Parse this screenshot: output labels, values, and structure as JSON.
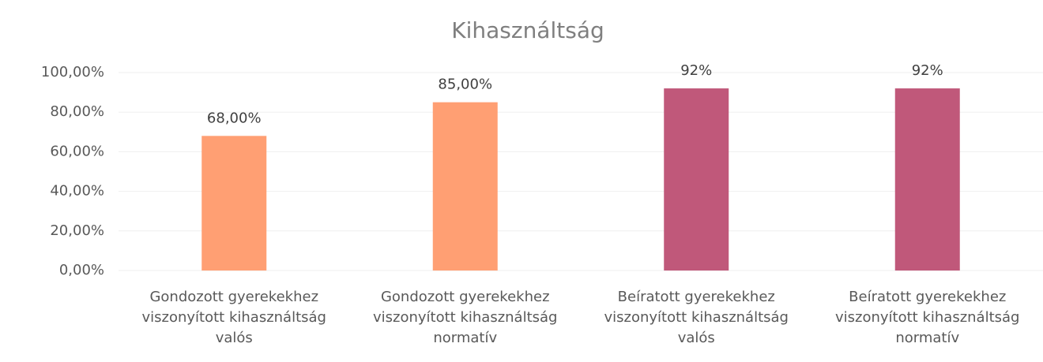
{
  "chart_data": {
    "type": "bar",
    "title": "Kihasználtság",
    "categories": [
      "Gondozott gyerekekhez viszonyított kihasználtság valós",
      "Gondozott gyerekekhez viszonyított kihasználtság normatív",
      "Beíratott gyerekekhez viszonyított kihasználtság valós",
      "Beíratott gyerekekhez viszonyított kihasználtság normatív"
    ],
    "values": [
      68,
      85,
      92,
      92
    ],
    "value_labels": [
      "68,00%",
      "85,00%",
      "92%",
      "92%"
    ],
    "colors": [
      "#ff9f73",
      "#ff9f73",
      "#c0587a",
      "#c0587a"
    ],
    "ylim": [
      0,
      100
    ],
    "yticks": [
      {
        "value": 0,
        "label": "0,00%"
      },
      {
        "value": 20,
        "label": "20,00%"
      },
      {
        "value": 40,
        "label": "40,00%"
      },
      {
        "value": 60,
        "label": "60,00%"
      },
      {
        "value": 80,
        "label": "80,00%"
      },
      {
        "value": 100,
        "label": "100,00%"
      }
    ],
    "grid": true
  }
}
